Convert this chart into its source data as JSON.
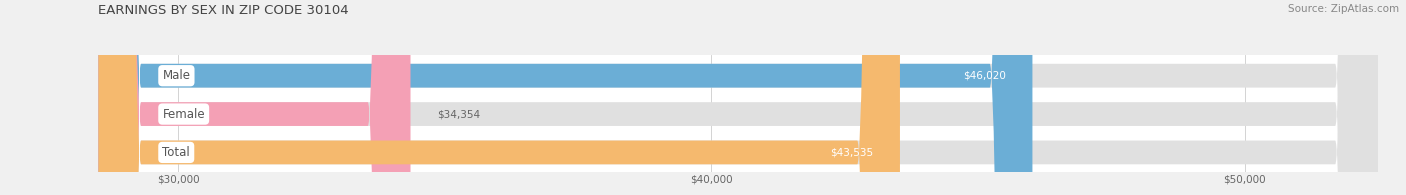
{
  "title": "EARNINGS BY SEX IN ZIP CODE 30104",
  "source": "Source: ZipAtlas.com",
  "categories": [
    "Male",
    "Female",
    "Total"
  ],
  "values": [
    46020,
    34354,
    43535
  ],
  "bar_colors": [
    "#6baed6",
    "#f4a0b5",
    "#f5b96e"
  ],
  "label_inside": [
    true,
    false,
    true
  ],
  "value_labels": [
    "$46,020",
    "$34,354",
    "$43,535"
  ],
  "xmin": 28500,
  "xmax": 52500,
  "xticks": [
    30000,
    40000,
    50000
  ],
  "xtick_labels": [
    "$30,000",
    "$40,000",
    "$50,000"
  ],
  "page_bg_color": "#f0f0f0",
  "chart_bg_color": "#ffffff",
  "bar_track_color": "#e0e0e0",
  "title_color": "#444444",
  "source_color": "#888888",
  "label_color_inside": "#ffffff",
  "label_color_outside": "#666666",
  "cat_label_color": "#555555",
  "title_fontsize": 9.5,
  "source_fontsize": 7.5,
  "value_fontsize": 7.5,
  "cat_fontsize": 8.5,
  "tick_fontsize": 7.5
}
